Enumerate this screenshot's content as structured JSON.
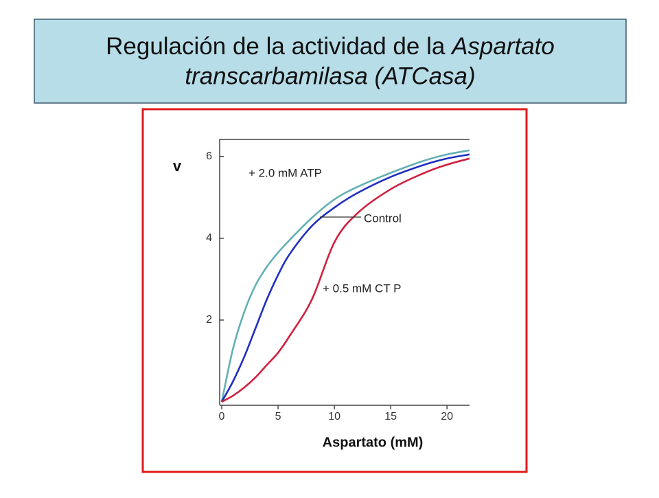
{
  "slide": {
    "title": [
      "Regulación de la actividad de la ",
      "Aspartato",
      "transcarbamilasa (ATCasa)"
    ]
  },
  "chart_data": {
    "type": "line",
    "y_label": "v",
    "x_label": "Aspartato (mM)",
    "x": [
      0,
      1,
      2,
      3,
      4,
      5,
      6,
      8,
      10,
      12,
      15,
      18,
      20,
      22
    ],
    "series": [
      {
        "name": "+ 2.0 mM ATP",
        "color": "#62b0b4",
        "values": [
          0,
          1.3,
          2.2,
          2.85,
          3.3,
          3.65,
          3.95,
          4.5,
          4.95,
          5.25,
          5.6,
          5.9,
          6.05,
          6.15
        ]
      },
      {
        "name": "Control",
        "color": "#1f2fc0",
        "values": [
          0,
          0.5,
          1.1,
          1.8,
          2.5,
          3.1,
          3.6,
          4.3,
          4.75,
          5.1,
          5.5,
          5.8,
          5.95,
          6.05
        ]
      },
      {
        "name": "+ 0.5 mM CT P",
        "color": "#d0203f",
        "values": [
          0,
          0.15,
          0.35,
          0.6,
          0.9,
          1.2,
          1.6,
          2.5,
          3.9,
          4.6,
          5.2,
          5.6,
          5.8,
          5.95
        ]
      }
    ],
    "xlim": [
      0,
      22
    ],
    "ylim": [
      0,
      6.4
    ],
    "xticks": [
      0,
      5,
      10,
      15,
      20
    ],
    "yticks": [
      2,
      4,
      6
    ]
  }
}
